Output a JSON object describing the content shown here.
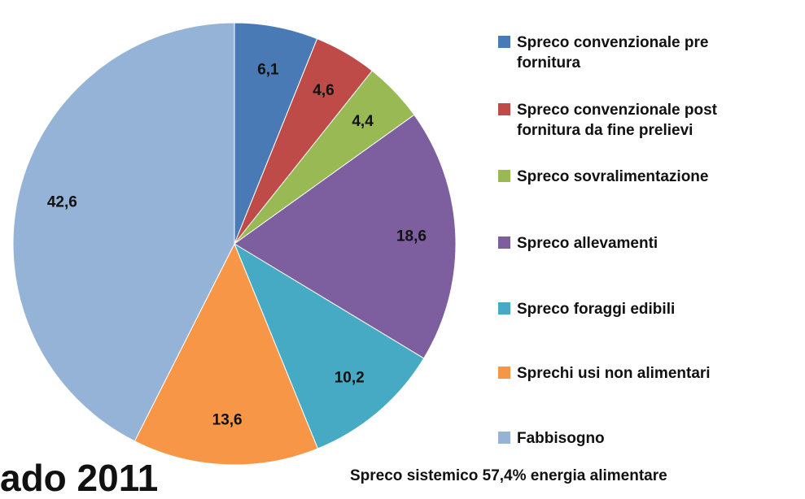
{
  "chart_data": {
    "type": "pie",
    "categories": [
      "Spreco convenzionale pre fornitura",
      "Spreco convenzionale post fornitura da fine prelievi",
      "Spreco sovralimentazione",
      "Spreco allevamenti",
      "Spreco foraggi edibili",
      "Sprechi usi non alimentari",
      "Fabbisogno"
    ],
    "values": [
      6.1,
      4.6,
      4.4,
      18.6,
      10.2,
      13.6,
      42.6
    ],
    "value_labels": [
      "6,1",
      "4,6",
      "4,4",
      "18,6",
      "10,2",
      "13,6",
      "42,6"
    ],
    "colors": [
      "#4a7ab5",
      "#be4b48",
      "#98b954",
      "#7d5fa0",
      "#46aac5",
      "#f79646",
      "#95b3d7"
    ],
    "legend": "right",
    "annotations": [
      "Spreco sistemico 57,4% energia alimentare",
      "ado 2011"
    ]
  }
}
